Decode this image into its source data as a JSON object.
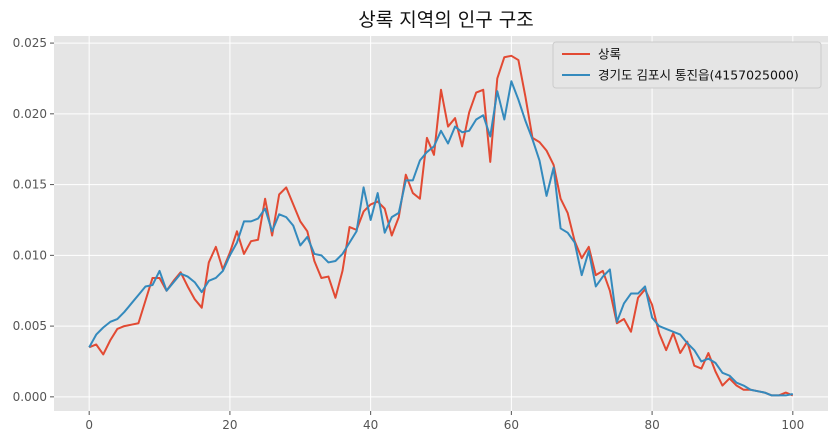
{
  "chart_data": {
    "type": "line",
    "title": "상록 지역의 인구 구조",
    "xlabel": "",
    "ylabel": "",
    "xlim": [
      -5,
      105
    ],
    "ylim": [
      -0.001,
      0.0255
    ],
    "xticks": [
      0,
      20,
      40,
      60,
      80,
      100
    ],
    "xtick_labels": [
      "0",
      "20",
      "40",
      "60",
      "80",
      "100"
    ],
    "yticks": [
      0.0,
      0.005,
      0.01,
      0.015,
      0.02,
      0.025
    ],
    "ytick_labels": [
      "0.000",
      "0.005",
      "0.010",
      "0.015",
      "0.020",
      "0.025"
    ],
    "grid": true,
    "legend_position": "top-right",
    "background": "#e5e5e5",
    "x": [
      0,
      1,
      2,
      3,
      4,
      5,
      6,
      7,
      8,
      9,
      10,
      11,
      12,
      13,
      14,
      15,
      16,
      17,
      18,
      19,
      20,
      21,
      22,
      23,
      24,
      25,
      26,
      27,
      28,
      29,
      30,
      31,
      32,
      33,
      34,
      35,
      36,
      37,
      38,
      39,
      40,
      41,
      42,
      43,
      44,
      45,
      46,
      47,
      48,
      49,
      50,
      51,
      52,
      53,
      54,
      55,
      56,
      57,
      58,
      59,
      60,
      61,
      62,
      63,
      64,
      65,
      66,
      67,
      68,
      69,
      70,
      71,
      72,
      73,
      74,
      75,
      76,
      77,
      78,
      79,
      80,
      81,
      82,
      83,
      84,
      85,
      86,
      87,
      88,
      89,
      90,
      91,
      92,
      93,
      94,
      95,
      96,
      97,
      98,
      99,
      100
    ],
    "series": [
      {
        "name": "상록",
        "color": "#e24a33",
        "values": [
          0.0035,
          0.0037,
          0.003,
          0.004,
          0.0048,
          0.005,
          0.0051,
          0.0052,
          0.0068,
          0.0084,
          0.0084,
          0.0075,
          0.0082,
          0.0088,
          0.0078,
          0.0069,
          0.0063,
          0.0095,
          0.0106,
          0.009,
          0.0102,
          0.0117,
          0.0101,
          0.011,
          0.0111,
          0.014,
          0.0114,
          0.0143,
          0.0148,
          0.0136,
          0.0124,
          0.0117,
          0.0096,
          0.0084,
          0.0085,
          0.007,
          0.0089,
          0.012,
          0.0118,
          0.0131,
          0.0136,
          0.0138,
          0.0133,
          0.0114,
          0.0127,
          0.0157,
          0.0144,
          0.014,
          0.0183,
          0.0171,
          0.0217,
          0.0191,
          0.0197,
          0.0177,
          0.0201,
          0.0215,
          0.0217,
          0.0166,
          0.0225,
          0.024,
          0.0241,
          0.0238,
          0.0212,
          0.0183,
          0.018,
          0.0174,
          0.0164,
          0.014,
          0.013,
          0.011,
          0.0098,
          0.0106,
          0.0086,
          0.0089,
          0.0075,
          0.0052,
          0.0055,
          0.0046,
          0.007,
          0.0076,
          0.0065,
          0.0045,
          0.0033,
          0.0045,
          0.0031,
          0.0039,
          0.0022,
          0.002,
          0.0031,
          0.0018,
          0.0008,
          0.0013,
          0.0008,
          0.0005,
          0.0005,
          0.0004,
          0.0003,
          0.0001,
          0.0001,
          0.0003,
          0.0001
        ]
      },
      {
        "name": "경기도 김포시 통진읍(4157025000)",
        "color": "#348abd",
        "values": [
          0.0035,
          0.0044,
          0.0049,
          0.0053,
          0.0055,
          0.006,
          0.0066,
          0.0072,
          0.0078,
          0.0079,
          0.0089,
          0.0075,
          0.0081,
          0.0087,
          0.0085,
          0.0081,
          0.0074,
          0.0082,
          0.0084,
          0.0089,
          0.01,
          0.0109,
          0.0124,
          0.0124,
          0.0126,
          0.0133,
          0.0117,
          0.0129,
          0.0127,
          0.0121,
          0.0107,
          0.0113,
          0.0101,
          0.01,
          0.0095,
          0.0096,
          0.0101,
          0.0109,
          0.0117,
          0.0148,
          0.0125,
          0.0144,
          0.0116,
          0.0127,
          0.013,
          0.0153,
          0.0153,
          0.0167,
          0.0173,
          0.0177,
          0.0188,
          0.0179,
          0.0191,
          0.0187,
          0.0188,
          0.0196,
          0.0199,
          0.0184,
          0.0216,
          0.0196,
          0.0223,
          0.021,
          0.0195,
          0.0182,
          0.0167,
          0.0142,
          0.0162,
          0.0119,
          0.0116,
          0.0109,
          0.0086,
          0.0103,
          0.0078,
          0.0085,
          0.009,
          0.0053,
          0.0066,
          0.0073,
          0.0073,
          0.0078,
          0.0056,
          0.005,
          0.0048,
          0.0046,
          0.0044,
          0.0038,
          0.0033,
          0.0025,
          0.0027,
          0.0024,
          0.0017,
          0.0015,
          0.001,
          0.0008,
          0.0005,
          0.0004,
          0.0003,
          0.0001,
          0.0001,
          0.0001,
          0.0002
        ]
      }
    ]
  }
}
